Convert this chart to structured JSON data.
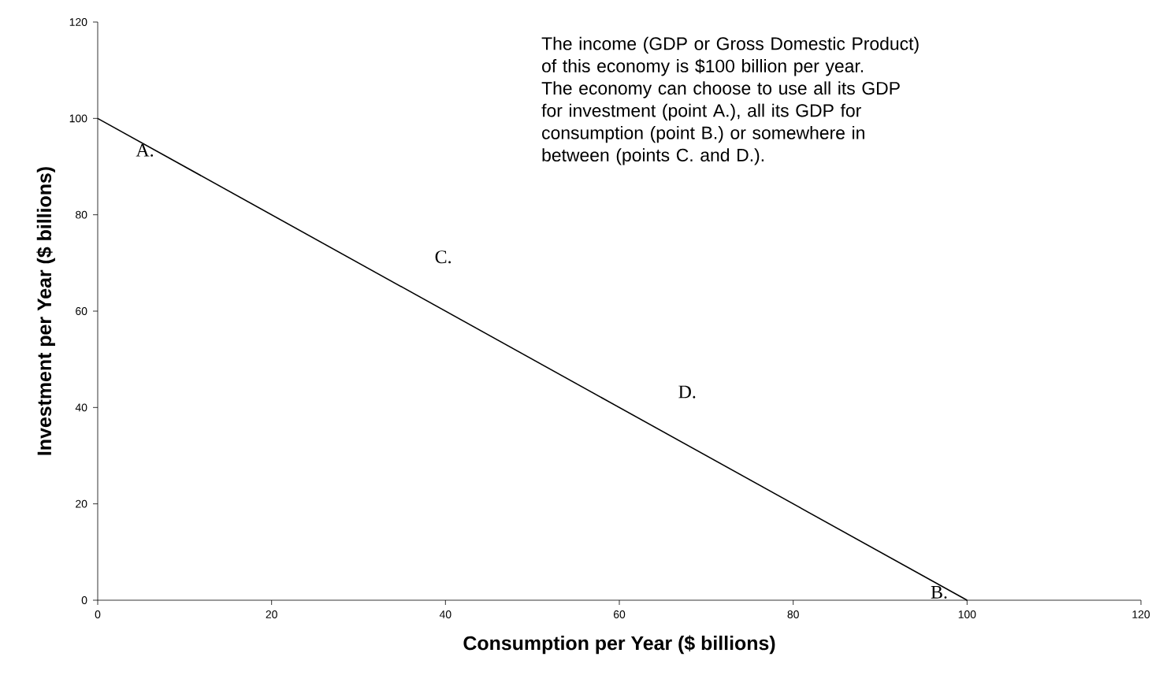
{
  "chart_data": {
    "type": "line",
    "x": [
      0,
      100
    ],
    "series": [
      {
        "color": "#000000",
        "values": [
          100,
          0
        ]
      }
    ],
    "xlabel": "Consumption per Year ($ billions)",
    "ylabel": "Investment per Year ($ billions)",
    "xlim": [
      0,
      120
    ],
    "ylim": [
      0,
      120
    ],
    "xticks": [
      0,
      20,
      40,
      60,
      80,
      100,
      120
    ],
    "yticks": [
      0,
      20,
      40,
      60,
      80,
      100,
      120
    ],
    "grid": false,
    "marker": "none",
    "line_style": "solid",
    "annotations": [
      {
        "text": "A.",
        "x": 0,
        "y": 100
      },
      {
        "text": "C.",
        "x": 38,
        "y": 62
      },
      {
        "text": "D.",
        "x": 66,
        "y": 34
      },
      {
        "text": "B.",
        "x": 100,
        "y": 0
      },
      "The income (GDP or Gross Domestic Product) of this economy is $100 billion per year.  The economy can choose to use all its GDP for investment (point A.), all its GDP for consumption (point B.) or somewhere in between (points C. and D.)."
    ]
  }
}
